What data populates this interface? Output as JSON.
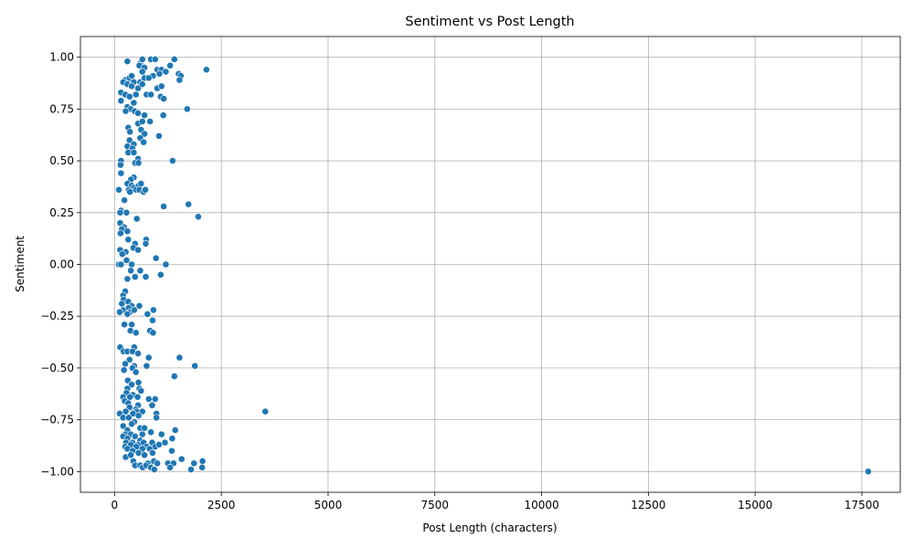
{
  "chart_data": {
    "type": "scatter",
    "title": "Sentiment vs Post Length",
    "xlabel": "Post Length (characters)",
    "ylabel": "Sentiment",
    "xlim": [
      -800,
      18400
    ],
    "ylim": [
      -1.1,
      1.1
    ],
    "x_ticks": [
      0,
      2500,
      5000,
      7500,
      10000,
      12500,
      15000,
      17500
    ],
    "x_tick_labels": [
      "0",
      "2500",
      "5000",
      "7500",
      "10000",
      "12500",
      "15000",
      "17500"
    ],
    "y_ticks": [
      -1.0,
      -0.75,
      -0.5,
      -0.25,
      0.0,
      0.25,
      0.5,
      0.75,
      1.0
    ],
    "y_tick_labels": [
      "−1.00",
      "−0.75",
      "−0.50",
      "−0.25",
      "0.00",
      "0.25",
      "0.50",
      "0.75",
      "1.00"
    ],
    "grid": true,
    "marker_color": "#1f77b4",
    "marker_edge_color": "#ffffff",
    "points": [
      [
        300,
        0.98
      ],
      [
        600,
        0.97
      ],
      [
        650,
        0.99
      ],
      [
        850,
        0.99
      ],
      [
        950,
        0.99
      ],
      [
        1400,
        0.99
      ],
      [
        580,
        0.96
      ],
      [
        700,
        0.95
      ],
      [
        1000,
        0.94
      ],
      [
        1100,
        0.94
      ],
      [
        1300,
        0.96
      ],
      [
        2150,
        0.94
      ],
      [
        650,
        0.93
      ],
      [
        900,
        0.91
      ],
      [
        1200,
        0.93
      ],
      [
        1500,
        0.92
      ],
      [
        1550,
        0.91
      ],
      [
        250,
        0.89
      ],
      [
        350,
        0.9
      ],
      [
        400,
        0.91
      ],
      [
        450,
        0.88
      ],
      [
        600,
        0.88
      ],
      [
        700,
        0.9
      ],
      [
        800,
        0.9
      ],
      [
        1050,
        0.92
      ],
      [
        1520,
        0.89
      ],
      [
        200,
        0.88
      ],
      [
        300,
        0.87
      ],
      [
        400,
        0.86
      ],
      [
        550,
        0.85
      ],
      [
        650,
        0.87
      ],
      [
        1000,
        0.85
      ],
      [
        1100,
        0.86
      ],
      [
        150,
        0.83
      ],
      [
        250,
        0.82
      ],
      [
        350,
        0.81
      ],
      [
        500,
        0.82
      ],
      [
        750,
        0.82
      ],
      [
        850,
        0.82
      ],
      [
        1080,
        0.81
      ],
      [
        1150,
        0.8
      ],
      [
        150,
        0.79
      ],
      [
        450,
        0.78
      ],
      [
        300,
        0.76
      ],
      [
        380,
        0.75
      ],
      [
        260,
        0.74
      ],
      [
        470,
        0.74
      ],
      [
        550,
        0.73
      ],
      [
        1700,
        0.75
      ],
      [
        700,
        0.72
      ],
      [
        1140,
        0.72
      ],
      [
        550,
        0.68
      ],
      [
        650,
        0.69
      ],
      [
        830,
        0.69
      ],
      [
        320,
        0.66
      ],
      [
        360,
        0.64
      ],
      [
        620,
        0.65
      ],
      [
        700,
        0.63
      ],
      [
        1040,
        0.62
      ],
      [
        600,
        0.61
      ],
      [
        350,
        0.6
      ],
      [
        450,
        0.58
      ],
      [
        680,
        0.59
      ],
      [
        300,
        0.57
      ],
      [
        420,
        0.56
      ],
      [
        320,
        0.54
      ],
      [
        450,
        0.54
      ],
      [
        550,
        0.51
      ],
      [
        150,
        0.5
      ],
      [
        140,
        0.48
      ],
      [
        480,
        0.49
      ],
      [
        560,
        0.49
      ],
      [
        1360,
        0.5
      ],
      [
        150,
        0.44
      ],
      [
        450,
        0.42
      ],
      [
        380,
        0.41
      ],
      [
        300,
        0.39
      ],
      [
        400,
        0.38
      ],
      [
        450,
        0.37
      ],
      [
        560,
        0.38
      ],
      [
        620,
        0.39
      ],
      [
        100,
        0.36
      ],
      [
        330,
        0.36
      ],
      [
        360,
        0.35
      ],
      [
        500,
        0.36
      ],
      [
        580,
        0.36
      ],
      [
        680,
        0.35
      ],
      [
        720,
        0.36
      ],
      [
        230,
        0.31
      ],
      [
        1150,
        0.28
      ],
      [
        1730,
        0.29
      ],
      [
        150,
        0.26
      ],
      [
        280,
        0.25
      ],
      [
        130,
        0.25
      ],
      [
        1960,
        0.23
      ],
      [
        520,
        0.22
      ],
      [
        130,
        0.2
      ],
      [
        220,
        0.18
      ],
      [
        170,
        0.17
      ],
      [
        300,
        0.16
      ],
      [
        140,
        0.15
      ],
      [
        320,
        0.12
      ],
      [
        740,
        0.12
      ],
      [
        730,
        0.1
      ],
      [
        480,
        0.1
      ],
      [
        440,
        0.08
      ],
      [
        550,
        0.07
      ],
      [
        130,
        0.07
      ],
      [
        260,
        0.06
      ],
      [
        180,
        0.05
      ],
      [
        970,
        0.03
      ],
      [
        280,
        0.02
      ],
      [
        100,
        0.0
      ],
      [
        150,
        0.0
      ],
      [
        400,
        0.0
      ],
      [
        1200,
        0.0
      ],
      [
        380,
        -0.03
      ],
      [
        600,
        -0.03
      ],
      [
        1080,
        -0.05
      ],
      [
        480,
        -0.06
      ],
      [
        730,
        -0.06
      ],
      [
        300,
        -0.07
      ],
      [
        250,
        -0.13
      ],
      [
        200,
        -0.15
      ],
      [
        210,
        -0.17
      ],
      [
        170,
        -0.19
      ],
      [
        320,
        -0.18
      ],
      [
        400,
        -0.2
      ],
      [
        580,
        -0.2
      ],
      [
        200,
        -0.22
      ],
      [
        330,
        -0.21
      ],
      [
        360,
        -0.23
      ],
      [
        460,
        -0.22
      ],
      [
        120,
        -0.23
      ],
      [
        300,
        -0.24
      ],
      [
        770,
        -0.24
      ],
      [
        910,
        -0.22
      ],
      [
        890,
        -0.27
      ],
      [
        230,
        -0.29
      ],
      [
        400,
        -0.29
      ],
      [
        370,
        -0.32
      ],
      [
        830,
        -0.32
      ],
      [
        900,
        -0.33
      ],
      [
        500,
        -0.33
      ],
      [
        130,
        -0.4
      ],
      [
        460,
        -0.4
      ],
      [
        210,
        -0.42
      ],
      [
        300,
        -0.42
      ],
      [
        420,
        -0.42
      ],
      [
        550,
        -0.43
      ],
      [
        1520,
        -0.45
      ],
      [
        800,
        -0.45
      ],
      [
        350,
        -0.46
      ],
      [
        250,
        -0.48
      ],
      [
        460,
        -0.49
      ],
      [
        750,
        -0.49
      ],
      [
        1880,
        -0.49
      ],
      [
        220,
        -0.51
      ],
      [
        420,
        -0.5
      ],
      [
        500,
        -0.52
      ],
      [
        1400,
        -0.54
      ],
      [
        310,
        -0.56
      ],
      [
        560,
        -0.57
      ],
      [
        400,
        -0.58
      ],
      [
        300,
        -0.6
      ],
      [
        580,
        -0.6
      ],
      [
        620,
        -0.61
      ],
      [
        280,
        -0.62
      ],
      [
        430,
        -0.63
      ],
      [
        540,
        -0.64
      ],
      [
        360,
        -0.64
      ],
      [
        200,
        -0.64
      ],
      [
        800,
        -0.65
      ],
      [
        950,
        -0.65
      ],
      [
        240,
        -0.66
      ],
      [
        320,
        -0.67
      ],
      [
        550,
        -0.68
      ],
      [
        880,
        -0.68
      ],
      [
        350,
        -0.69
      ],
      [
        500,
        -0.7
      ],
      [
        520,
        -0.71
      ],
      [
        260,
        -0.71
      ],
      [
        650,
        -0.71
      ],
      [
        3530,
        -0.71
      ],
      [
        120,
        -0.72
      ],
      [
        430,
        -0.72
      ],
      [
        980,
        -0.72
      ],
      [
        560,
        -0.73
      ],
      [
        200,
        -0.74
      ],
      [
        980,
        -0.74
      ],
      [
        330,
        -0.74
      ],
      [
        460,
        -0.76
      ],
      [
        400,
        -0.77
      ],
      [
        200,
        -0.78
      ],
      [
        600,
        -0.79
      ],
      [
        700,
        -0.79
      ],
      [
        300,
        -0.8
      ],
      [
        1420,
        -0.8
      ],
      [
        850,
        -0.81
      ],
      [
        250,
        -0.82
      ],
      [
        380,
        -0.82
      ],
      [
        650,
        -0.82
      ],
      [
        200,
        -0.83
      ],
      [
        480,
        -0.83
      ],
      [
        1100,
        -0.82
      ],
      [
        300,
        -0.84
      ],
      [
        600,
        -0.85
      ],
      [
        1350,
        -0.84
      ],
      [
        270,
        -0.86
      ],
      [
        420,
        -0.86
      ],
      [
        560,
        -0.87
      ],
      [
        680,
        -0.86
      ],
      [
        880,
        -0.86
      ],
      [
        1180,
        -0.86
      ],
      [
        250,
        -0.88
      ],
      [
        380,
        -0.87
      ],
      [
        510,
        -0.88
      ],
      [
        750,
        -0.88
      ],
      [
        950,
        -0.88
      ],
      [
        1040,
        -0.87
      ],
      [
        300,
        -0.89
      ],
      [
        420,
        -0.9
      ],
      [
        650,
        -0.89
      ],
      [
        820,
        -0.89
      ],
      [
        1340,
        -0.9
      ],
      [
        260,
        -0.93
      ],
      [
        560,
        -0.91
      ],
      [
        700,
        -0.92
      ],
      [
        890,
        -0.91
      ],
      [
        380,
        -0.92
      ],
      [
        440,
        -0.95
      ],
      [
        480,
        -0.97
      ],
      [
        600,
        -0.97
      ],
      [
        780,
        -0.96
      ],
      [
        920,
        -0.95
      ],
      [
        1000,
        -0.96
      ],
      [
        1250,
        -0.96
      ],
      [
        1380,
        -0.96
      ],
      [
        1570,
        -0.94
      ],
      [
        1860,
        -0.96
      ],
      [
        2060,
        -0.95
      ],
      [
        660,
        -0.98
      ],
      [
        740,
        -0.97
      ],
      [
        850,
        -0.98
      ],
      [
        930,
        -0.99
      ],
      [
        1300,
        -0.98
      ],
      [
        1790,
        -0.99
      ],
      [
        2050,
        -0.98
      ],
      [
        17650,
        -1.0
      ]
    ]
  }
}
